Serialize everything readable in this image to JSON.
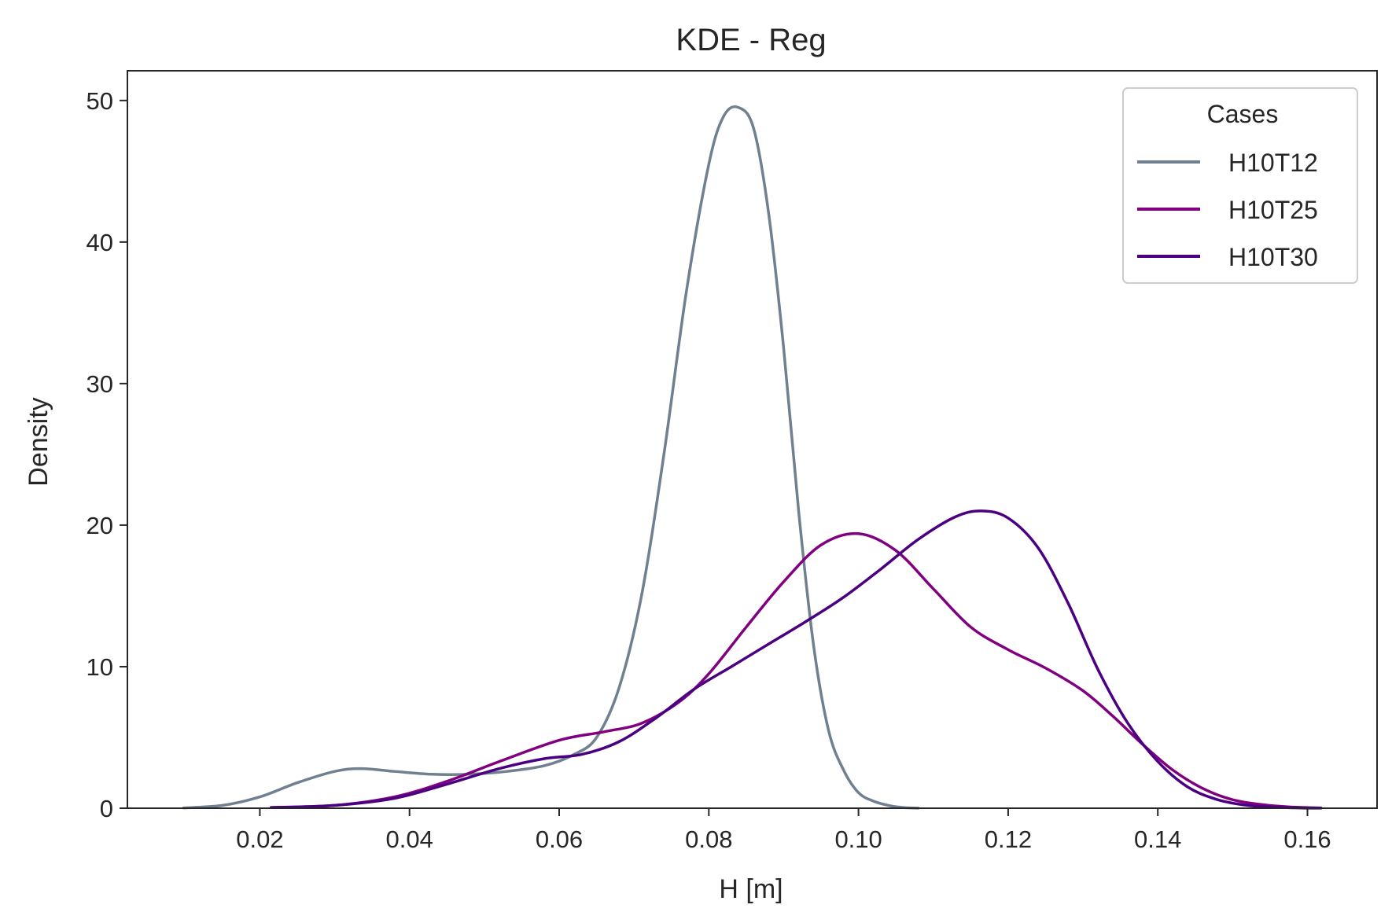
{
  "chart_data": {
    "type": "line",
    "title": "KDE - Reg",
    "xlabel": "H [m]",
    "ylabel": "Density",
    "xlim": [
      0.0023,
      0.1693
    ],
    "ylim": [
      0,
      52.1
    ],
    "xticks": [
      0.02,
      0.04,
      0.06,
      0.08,
      0.1,
      0.12,
      0.14,
      0.16
    ],
    "xtick_labels": [
      "0.02",
      "0.04",
      "0.06",
      "0.08",
      "0.10",
      "0.12",
      "0.14",
      "0.16"
    ],
    "yticks": [
      0,
      10,
      20,
      30,
      40,
      50
    ],
    "ytick_labels": [
      "0",
      "10",
      "20",
      "30",
      "40",
      "50"
    ],
    "grid": false,
    "legend": {
      "title": "Cases",
      "position": "top-right"
    },
    "series": [
      {
        "name": "H10T12",
        "color": "#708090",
        "x": [
          0.0098,
          0.015,
          0.02,
          0.025,
          0.03,
          0.0335,
          0.038,
          0.043,
          0.048,
          0.053,
          0.058,
          0.062,
          0.065,
          0.068,
          0.071,
          0.074,
          0.077,
          0.08,
          0.082,
          0.084,
          0.086,
          0.088,
          0.09,
          0.092,
          0.094,
          0.096,
          0.098,
          0.1,
          0.102,
          0.104,
          0.106,
          0.108
        ],
        "y": [
          0.02,
          0.2,
          0.8,
          1.8,
          2.6,
          2.8,
          2.6,
          2.4,
          2.4,
          2.6,
          3.0,
          3.8,
          5.0,
          8.5,
          15.0,
          25.0,
          36.5,
          45.5,
          48.9,
          49.5,
          48.0,
          42.0,
          32.5,
          21.0,
          11.5,
          5.5,
          2.7,
          1.1,
          0.5,
          0.2,
          0.05,
          0.01
        ]
      },
      {
        "name": "H10T25",
        "color": "#800080",
        "x": [
          0.0215,
          0.03,
          0.038,
          0.045,
          0.052,
          0.06,
          0.066,
          0.071,
          0.076,
          0.08,
          0.085,
          0.09,
          0.095,
          0.1,
          0.105,
          0.11,
          0.115,
          0.12,
          0.125,
          0.13,
          0.134,
          0.138,
          0.142,
          0.146,
          0.15,
          0.154,
          0.158,
          0.1618
        ],
        "y": [
          0.05,
          0.2,
          0.8,
          1.9,
          3.3,
          4.8,
          5.4,
          6.0,
          7.5,
          9.5,
          12.8,
          16.0,
          18.6,
          19.4,
          18.2,
          15.5,
          12.8,
          11.2,
          9.9,
          8.3,
          6.5,
          4.5,
          2.7,
          1.4,
          0.6,
          0.25,
          0.08,
          0.02
        ]
      },
      {
        "name": "H10T30",
        "color": "#4b0082",
        "x": [
          0.0215,
          0.03,
          0.038,
          0.045,
          0.052,
          0.058,
          0.063,
          0.068,
          0.073,
          0.078,
          0.083,
          0.088,
          0.093,
          0.098,
          0.103,
          0.108,
          0.113,
          0.1165,
          0.12,
          0.124,
          0.128,
          0.132,
          0.136,
          0.14,
          0.144,
          0.148,
          0.152,
          0.156,
          0.16,
          0.1618
        ],
        "y": [
          0.05,
          0.2,
          0.7,
          1.7,
          2.8,
          3.5,
          3.8,
          4.7,
          6.4,
          8.4,
          10.0,
          11.6,
          13.2,
          14.9,
          16.9,
          19.0,
          20.6,
          21.0,
          20.5,
          18.4,
          14.5,
          9.8,
          6.0,
          3.3,
          1.5,
          0.6,
          0.2,
          0.06,
          0.01,
          0.005
        ]
      }
    ]
  }
}
